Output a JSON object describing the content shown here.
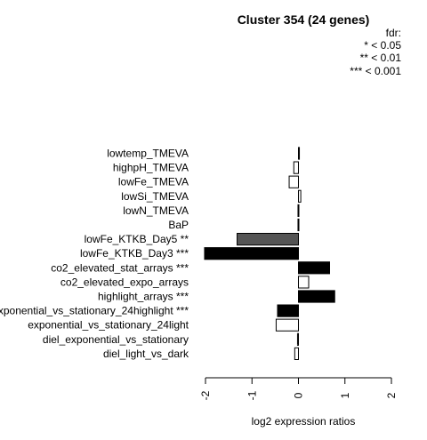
{
  "chart_data": {
    "type": "bar",
    "orientation": "horizontal",
    "title": "Cluster 354 (24 genes)",
    "xlabel": "log2 expression ratios",
    "xlim": [
      -2,
      2
    ],
    "xticks": [
      "-2",
      "-1",
      "0",
      "1",
      "2"
    ],
    "legend": {
      "title": "fdr:",
      "entries": [
        "* < 0.05",
        "** < 0.01",
        "*** < 0.001"
      ]
    },
    "categories": [
      "lowtemp_TMEVA",
      "highpH_TMEVA",
      "lowFe_TMEVA",
      "lowSi_TMEVA",
      "lowN_TMEVA",
      "BaP",
      "lowFe_KTKB_Day5 **",
      "lowFe_KTKB_Day3 ***",
      "co2_elevated_stat_arrays ***",
      "co2_elevated_expo_arrays",
      "highlight_arrays ***",
      "exponential_vs_stationary_24highlight ***",
      "exponential_vs_stationary_24light",
      "diel_exponential_vs_stationary",
      "diel_light_vs_dark"
    ],
    "values": [
      0.02,
      -0.1,
      -0.2,
      0.05,
      -0.01,
      -0.01,
      -1.32,
      -2.02,
      0.67,
      0.22,
      0.78,
      -0.45,
      -0.48,
      -0.02,
      -0.08
    ],
    "fills": [
      "#ffffff",
      "#ffffff",
      "#ffffff",
      "#ffffff",
      "#ffffff",
      "#ffffff",
      "#555555",
      "#000000",
      "#000000",
      "#ffffff",
      "#000000",
      "#000000",
      "#ffffff",
      "#ffffff",
      "#ffffff"
    ]
  }
}
